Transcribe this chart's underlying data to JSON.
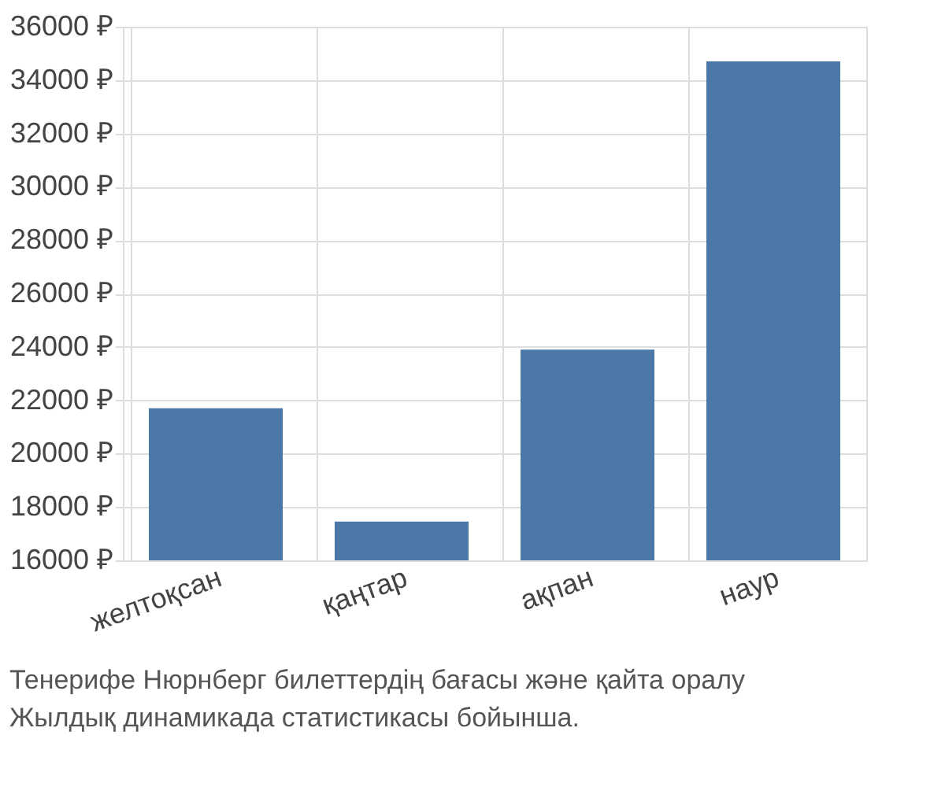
{
  "chart_data": {
    "type": "bar",
    "categories": [
      "желтоқсан",
      "қаңтар",
      "ақпан",
      "наур"
    ],
    "values": [
      21700,
      17450,
      23900,
      34700
    ],
    "color": "#4c78a8",
    "ylim": [
      16000,
      36000
    ],
    "yticks": [
      {
        "value": 16000,
        "label": "16000 ₽"
      },
      {
        "value": 18000,
        "label": "18000 ₽"
      },
      {
        "value": 20000,
        "label": "20000 ₽"
      },
      {
        "value": 22000,
        "label": "22000 ₽"
      },
      {
        "value": 24000,
        "label": "24000 ₽"
      },
      {
        "value": 26000,
        "label": "26000 ₽"
      },
      {
        "value": 28000,
        "label": "28000 ₽"
      },
      {
        "value": 30000,
        "label": "30000 ₽"
      },
      {
        "value": 32000,
        "label": "32000 ₽"
      },
      {
        "value": 34000,
        "label": "34000 ₽"
      },
      {
        "value": 36000,
        "label": "36000 ₽"
      }
    ],
    "grid": true,
    "annotations": [
      "Тенерифе Нюрнберг билеттердің бағасы және қайта оралу",
      "Жылдық динамикада статистикасы бойынша."
    ]
  }
}
